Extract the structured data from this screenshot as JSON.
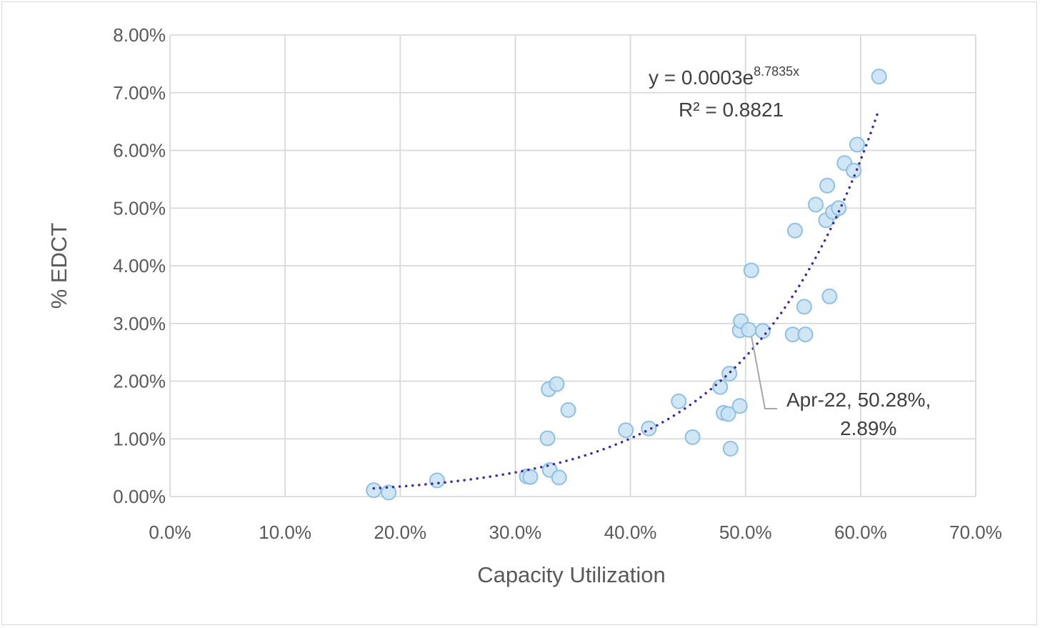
{
  "chart_data": {
    "type": "scatter",
    "title": "",
    "xlabel": "Capacity Utilization",
    "ylabel": "% EDCT",
    "xlim": [
      0,
      0.7
    ],
    "ylim": [
      0,
      0.08
    ],
    "x_ticks": [
      0,
      0.1,
      0.2,
      0.3,
      0.4,
      0.5,
      0.6,
      0.7
    ],
    "x_tick_labels": [
      "0.0%",
      "10.0%",
      "20.0%",
      "30.0%",
      "40.0%",
      "50.0%",
      "60.0%",
      "70.0%"
    ],
    "y_ticks": [
      0,
      0.01,
      0.02,
      0.03,
      0.04,
      0.05,
      0.06,
      0.07,
      0.08
    ],
    "y_tick_labels": [
      "0.00%",
      "1.00%",
      "2.00%",
      "3.00%",
      "4.00%",
      "5.00%",
      "6.00%",
      "7.00%",
      "8.00%"
    ],
    "grid": true,
    "legend": "none",
    "series": [
      {
        "color": "#8dc0e3",
        "fill": "#c9e2f3",
        "points": [
          [
            0.177,
            0.0011
          ],
          [
            0.19,
            0.0007
          ],
          [
            0.232,
            0.0028
          ],
          [
            0.31,
            0.0035
          ],
          [
            0.313,
            0.0034
          ],
          [
            0.33,
            0.0046
          ],
          [
            0.338,
            0.0033
          ],
          [
            0.328,
            0.0101
          ],
          [
            0.329,
            0.0186
          ],
          [
            0.336,
            0.0195
          ],
          [
            0.346,
            0.015
          ],
          [
            0.396,
            0.0115
          ],
          [
            0.416,
            0.0118
          ],
          [
            0.442,
            0.0165
          ],
          [
            0.454,
            0.0103
          ],
          [
            0.478,
            0.019
          ],
          [
            0.481,
            0.0145
          ],
          [
            0.485,
            0.0143
          ],
          [
            0.486,
            0.0213
          ],
          [
            0.487,
            0.0083
          ],
          [
            0.495,
            0.0157
          ],
          [
            0.495,
            0.0288
          ],
          [
            0.496,
            0.0304
          ],
          [
            0.5028,
            0.0289
          ],
          [
            0.505,
            0.0392
          ],
          [
            0.515,
            0.0287
          ],
          [
            0.541,
            0.0281
          ],
          [
            0.543,
            0.0461
          ],
          [
            0.551,
            0.0329
          ],
          [
            0.552,
            0.0281
          ],
          [
            0.561,
            0.0506
          ],
          [
            0.57,
            0.0479
          ],
          [
            0.571,
            0.0539
          ],
          [
            0.573,
            0.0347
          ],
          [
            0.576,
            0.0493
          ],
          [
            0.581,
            0.05
          ],
          [
            0.586,
            0.0578
          ],
          [
            0.594,
            0.0565
          ],
          [
            0.597,
            0.061
          ],
          [
            0.616,
            0.0728
          ]
        ]
      }
    ],
    "trendline": {
      "type": "exponential",
      "a": 0.0003,
      "b": 8.7835,
      "x_range": [
        0.177,
        0.616
      ],
      "color": "#3b2ba8",
      "equation_prefix": "y = 0.0003e",
      "equation_exponent": "8.7835x",
      "r_squared": "R² = 0.8821"
    },
    "data_label": {
      "x": 0.5028,
      "y": 0.0289,
      "line1": "Apr-22, 50.28%,",
      "line2": "2.89%"
    }
  }
}
